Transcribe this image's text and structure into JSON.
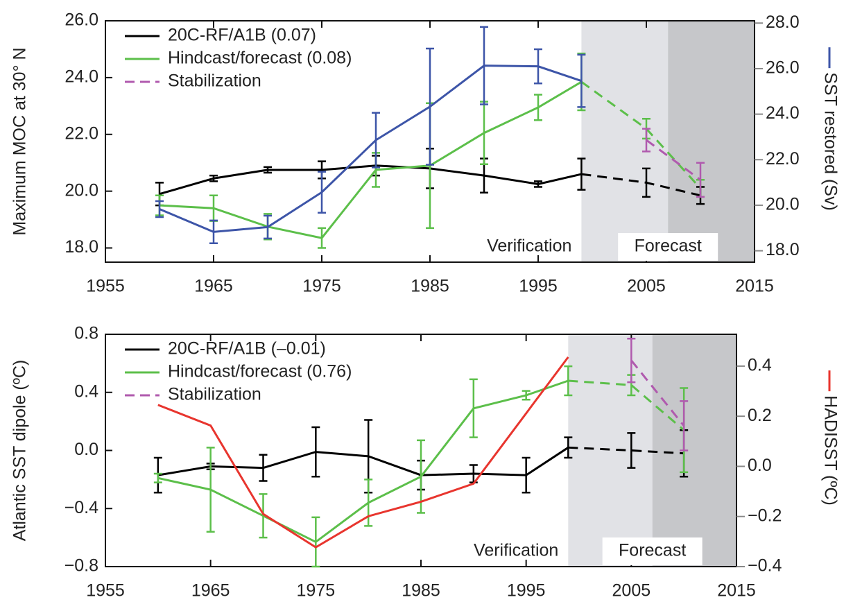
{
  "chart_data": [
    {
      "type": "line",
      "ylabel": "Maximum MOC at 30° N",
      "y2label": "SST restored (Sv)",
      "xlim": [
        1955,
        2015
      ],
      "xticks": [
        1955,
        1965,
        1975,
        1985,
        1995,
        2005,
        2015
      ],
      "ylim": [
        17.5,
        26.0
      ],
      "yticks": [
        {
          "value": 18,
          "label": "18.0"
        },
        {
          "value": 20,
          "label": "20.0"
        },
        {
          "value": 22,
          "label": "22.0"
        },
        {
          "value": 24,
          "label": "24.0"
        },
        {
          "value": 26,
          "label": "26.0"
        }
      ],
      "y2lim": [
        17.5,
        28.1
      ],
      "y2ticks": [
        {
          "value": 18,
          "label": "18.0"
        },
        {
          "value": 20,
          "label": "20.0"
        },
        {
          "value": 22,
          "label": "22.0"
        },
        {
          "value": 24,
          "label": "24.0"
        },
        {
          "value": 26,
          "label": "26.0"
        },
        {
          "value": 28,
          "label": "28.0"
        }
      ],
      "dash_from": 1999,
      "shaded_spans": [
        [
          1999,
          2007
        ],
        [
          2007,
          2015
        ]
      ],
      "shade_colors": [
        "#e1e2e6",
        "#c6c7ca"
      ],
      "annotations": [
        "Verification",
        "Forecast"
      ],
      "legend": "upper left",
      "series": [
        {
          "name": "20C-RF/A1B (0.07)",
          "color": "#000000",
          "x": [
            1960,
            1965,
            1970,
            1975,
            1980,
            1985,
            1990,
            1995,
            1999,
            2005,
            2010
          ],
          "values": [
            19.9,
            20.45,
            20.75,
            20.75,
            20.9,
            20.8,
            20.55,
            20.25,
            20.6,
            20.3,
            19.85
          ],
          "errors": [
            0.4,
            0.1,
            0.1,
            0.3,
            0.35,
            0.7,
            0.6,
            0.1,
            0.55,
            0.5,
            0.3
          ]
        },
        {
          "name": "Hindcast/forecast (0.08)",
          "color": "#5cbf4a",
          "x": [
            1960,
            1965,
            1970,
            1975,
            1980,
            1985,
            1990,
            1995,
            1999,
            2005,
            2010
          ],
          "values": [
            19.5,
            19.4,
            18.75,
            18.35,
            20.75,
            20.9,
            22.05,
            22.95,
            23.85,
            22.2,
            20.1
          ],
          "errors": [
            0.35,
            0.45,
            0.45,
            0.35,
            0.6,
            2.2,
            1.1,
            0.45,
            1.0,
            0.35,
            0.3
          ]
        },
        {
          "name": "Stabilization",
          "color": "#b05aae",
          "dashed": true,
          "x": [
            2005,
            2010
          ],
          "values": [
            21.8,
            20.4
          ],
          "errors": [
            0.4,
            0.6
          ]
        },
        {
          "name": "SST restored",
          "color": "#3d55a8",
          "axis": "y2",
          "x": [
            1960,
            1965,
            1970,
            1975,
            1980,
            1985,
            1990,
            1995,
            1999
          ],
          "values": [
            19.83,
            18.83,
            19.04,
            20.57,
            22.86,
            24.33,
            26.13,
            26.1,
            25.46
          ],
          "errors": [
            0.35,
            0.5,
            0.5,
            0.9,
            1.2,
            2.55,
            1.7,
            0.75,
            1.15
          ]
        }
      ]
    },
    {
      "type": "line",
      "ylabel": "Atlantic SST dipole (ºC)",
      "y2label": "HADISST (ºC)",
      "xlim": [
        1955,
        2015
      ],
      "xticks": [
        1955,
        1965,
        1975,
        1985,
        1995,
        2005,
        2015
      ],
      "ylim": [
        -0.8,
        0.8
      ],
      "yticks": [
        {
          "value": -0.8,
          "label": "−0.8"
        },
        {
          "value": -0.4,
          "label": "−0.4"
        },
        {
          "value": 0,
          "label": "0.0"
        },
        0.4,
        0.8
      ],
      "y2lim": [
        -0.4,
        0.527
      ],
      "y2ticks": [
        {
          "value": -0.4,
          "label": "−0.4"
        },
        {
          "value": -0.2,
          "label": "−0.2"
        },
        {
          "value": 0,
          "label": "0.0"
        },
        0.2,
        0.4
      ],
      "dash_from": 1999,
      "shaded_spans": [
        [
          1999,
          2007
        ],
        [
          2007,
          2015
        ]
      ],
      "shade_colors": [
        "#e1e2e6",
        "#c6c7ca"
      ],
      "annotations": [
        "Verification",
        "Forecast"
      ],
      "legend": "upper left",
      "series": [
        {
          "name": "20C-RF/A1B (–0.01)",
          "color": "#000000",
          "x": [
            1960,
            1965,
            1970,
            1975,
            1980,
            1985,
            1990,
            1995,
            1999,
            2005,
            2010
          ],
          "values": [
            -0.17,
            -0.11,
            -0.12,
            -0.01,
            -0.04,
            -0.17,
            -0.16,
            -0.17,
            0.02,
            0.0,
            -0.02
          ],
          "errors": [
            0.12,
            0.02,
            0.09,
            0.17,
            0.25,
            0.1,
            0.06,
            0.12,
            0.07,
            0.12,
            0.16
          ]
        },
        {
          "name": "Hindcast/forecast (0.76)",
          "color": "#5cbf4a",
          "x": [
            1960,
            1965,
            1970,
            1975,
            1980,
            1985,
            1990,
            1995,
            1999,
            2005,
            2010
          ],
          "values": [
            -0.19,
            -0.27,
            -0.45,
            -0.63,
            -0.36,
            -0.18,
            0.29,
            0.38,
            0.48,
            0.45,
            0.14
          ],
          "errors": [
            0.03,
            0.29,
            0.15,
            0.17,
            0.16,
            0.25,
            0.2,
            0.03,
            0.1,
            0.07,
            0.29
          ]
        },
        {
          "name": "Stabilization",
          "color": "#b05aae",
          "dashed": true,
          "x": [
            2005,
            2010
          ],
          "values": [
            0.62,
            0.17
          ],
          "errors": [
            0.15,
            0.17
          ]
        },
        {
          "name": "HADISST",
          "color": "#e8352e",
          "axis": "y2",
          "x": [
            1960,
            1965,
            1970,
            1975,
            1980,
            1985,
            1990,
            1999
          ],
          "values": [
            0.245,
            0.163,
            -0.19,
            -0.323,
            -0.199,
            -0.141,
            -0.069,
            0.436
          ]
        }
      ]
    }
  ]
}
